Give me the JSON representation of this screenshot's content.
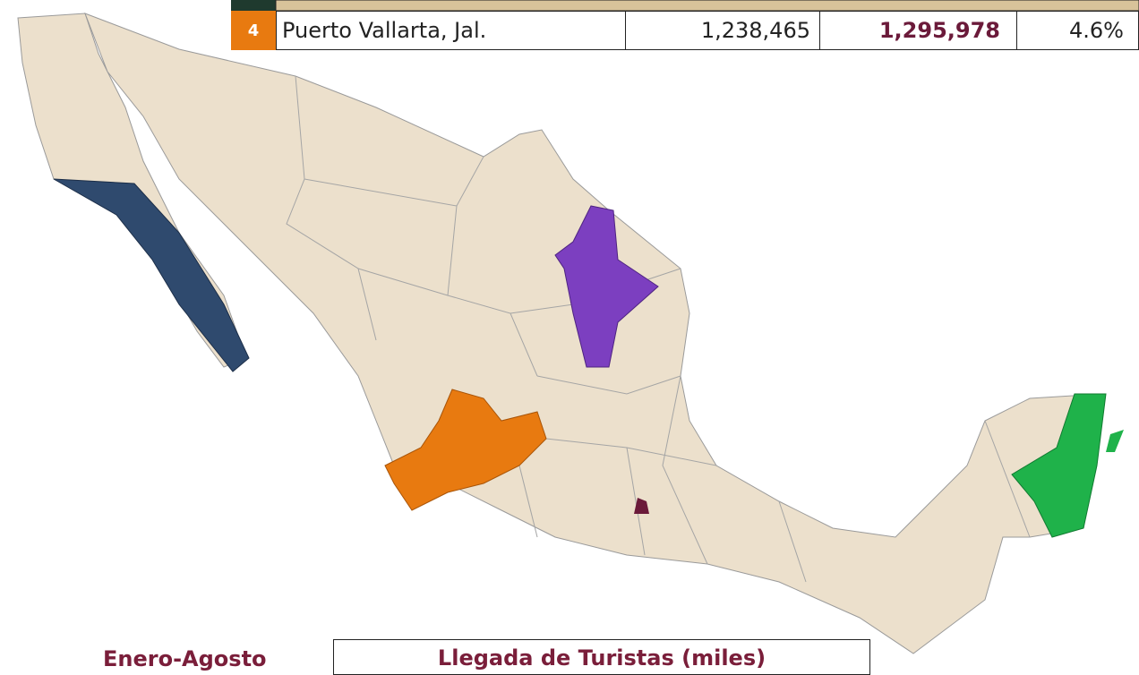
{
  "table": {
    "rows": [
      {
        "rank": "4",
        "destination": "Puerto Vallarta, Jal.",
        "previous": "1,238,465",
        "current": "1,295,978",
        "change": "4.6%"
      }
    ]
  },
  "footer": {
    "period": "Enero-Agosto",
    "table_title": "Llegada de Turistas (miles)"
  }
}
